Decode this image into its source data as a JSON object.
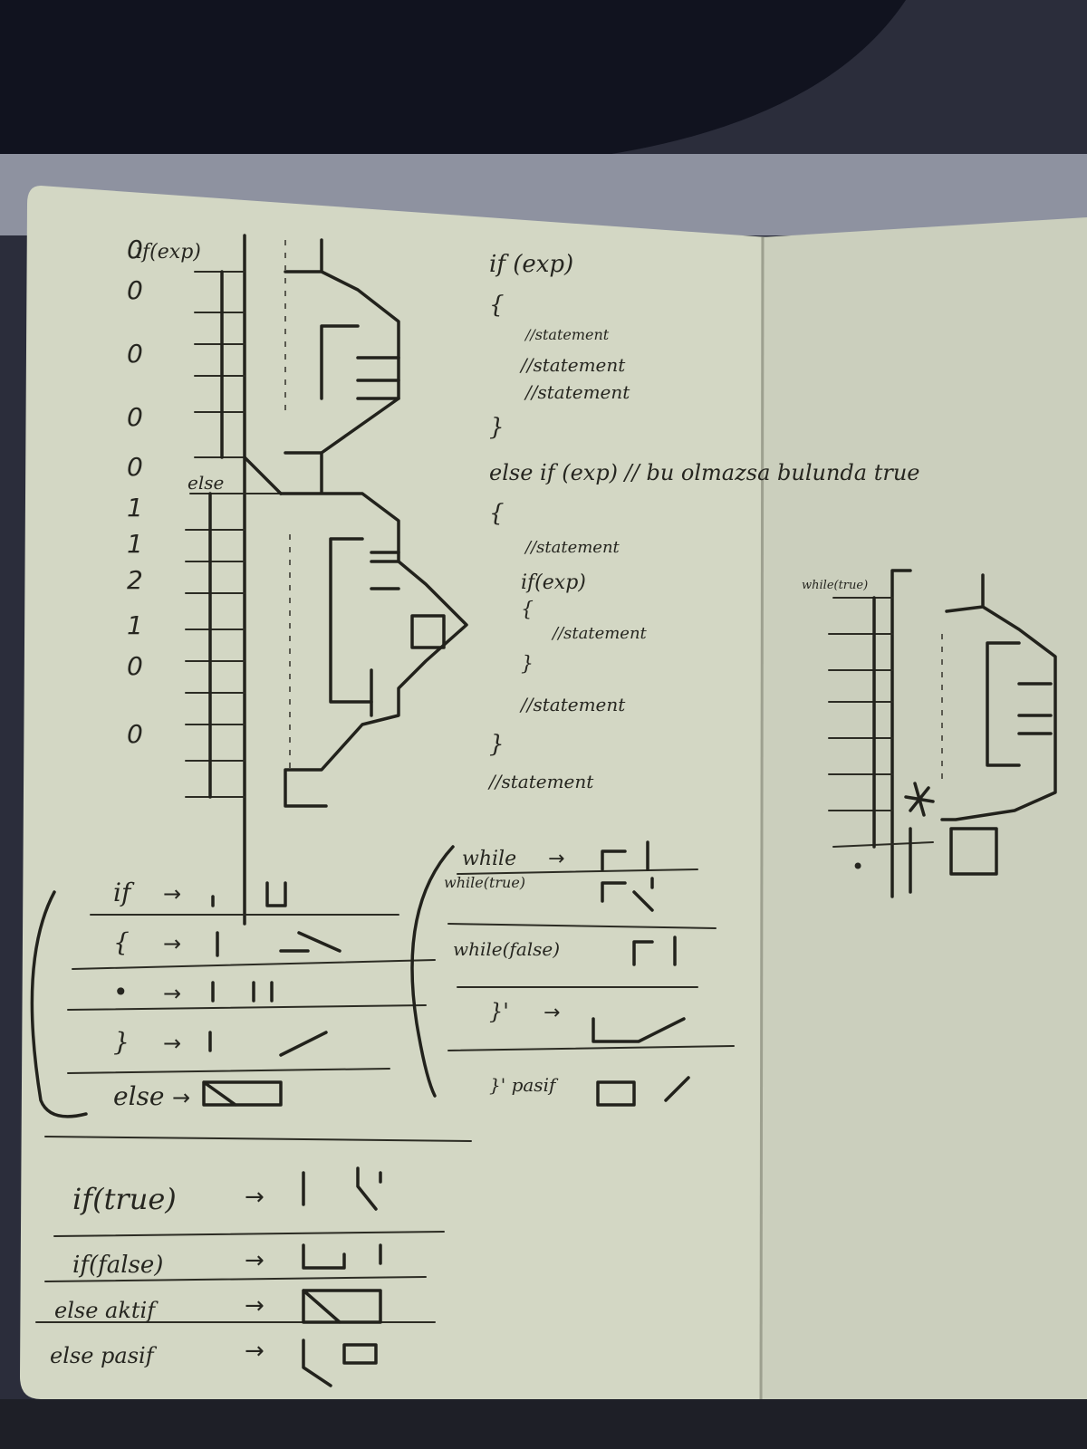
{
  "left_page": {
    "depth_column": [
      "0",
      "0",
      "0",
      "0",
      "0",
      "1",
      "1",
      "2",
      "1",
      "0",
      "0"
    ],
    "stair_labels": [
      "if(exp)",
      "{",
      "•",
      "•",
      "•",
      "}",
      "else",
      "{",
      "•",
      "if",
      "{",
      "•",
      "}",
      "•",
      "}",
      "•"
    ],
    "code_listing": [
      "if (exp)",
      "{",
      "//statement",
      "//statement",
      "//statement",
      "}",
      "else if (exp) // bu olmazsa bulunda true",
      "{",
      "//statement",
      "if(exp)",
      "{",
      "//statement",
      "}",
      "//statement",
      "}",
      "//statement"
    ],
    "legend_if": [
      {
        "label": "if",
        "arrow": "→"
      },
      {
        "label": "{",
        "arrow": "→"
      },
      {
        "label": "•",
        "arrow": "→"
      },
      {
        "label": "}",
        "arrow": "→"
      },
      {
        "label": "else",
        "arrow": "→"
      }
    ],
    "legend_while": [
      {
        "label": "while",
        "arrow": "→"
      },
      {
        "label": "while(true)",
        "arrow": ""
      },
      {
        "label": "while(false)",
        "arrow": ""
      },
      {
        "label": "}'",
        "arrow": "→"
      },
      {
        "label": "}' pasif",
        "arrow": ""
      }
    ],
    "legend_bottom": [
      {
        "label": "if(true)",
        "arrow": "→"
      },
      {
        "label": "if(false)",
        "arrow": "→"
      },
      {
        "label": "else aktif",
        "arrow": "→"
      },
      {
        "label": "else pasif",
        "arrow": "→"
      }
    ]
  },
  "right_page": {
    "stair_labels": [
      "while(true)",
      "{",
      "•",
      "•",
      "•",
      "}'",
      "•"
    ]
  },
  "colors": {
    "paper_left": "#d6d9c6",
    "paper_right": "#cfd3c2",
    "ink": "#22221c",
    "background": "#2a2c3a"
  }
}
